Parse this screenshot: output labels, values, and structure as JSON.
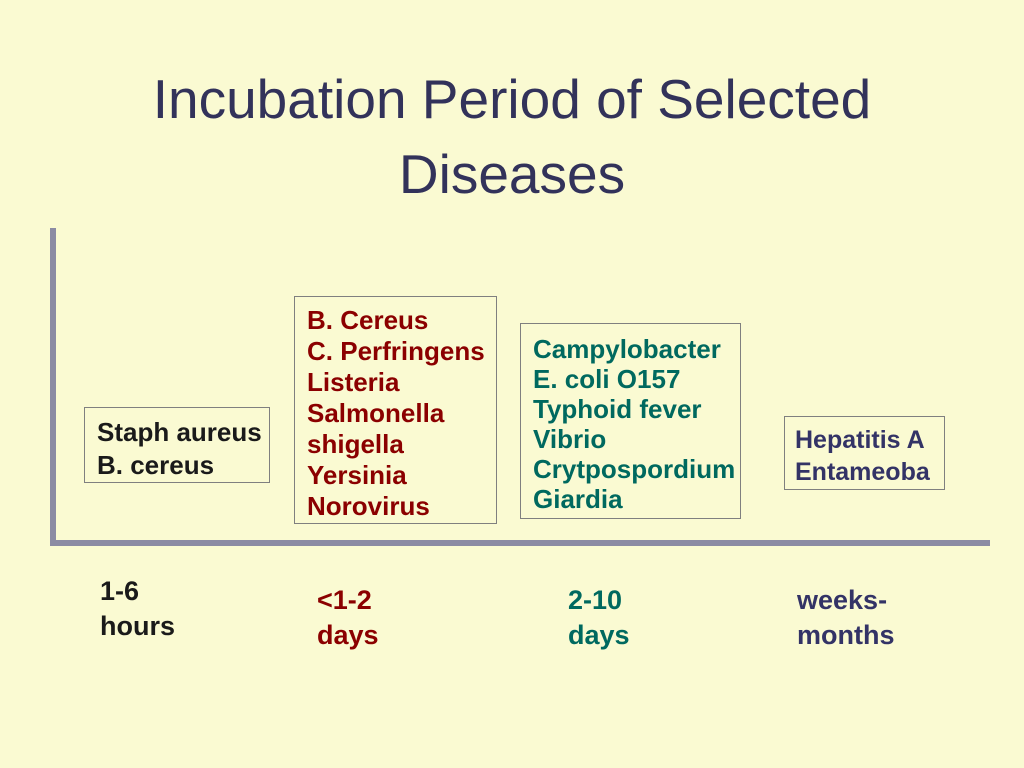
{
  "title": {
    "line1": "Incubation Period of Selected",
    "line2": "Diseases"
  },
  "colors": {
    "background": "#fafad2",
    "title_text": "#32325a",
    "axis_line": "#8b8ba3",
    "box_border": "#7f7f7f",
    "group_hours": "#1a1a1a",
    "group_days_short": "#8b0000",
    "group_days_long": "#00695f",
    "group_weeks_months": "#333366"
  },
  "groups": [
    {
      "id": "hours",
      "diseases": [
        "Staph aureus",
        "B. cereus"
      ],
      "period": [
        "1-6",
        "hours"
      ],
      "color": "#1a1a1a"
    },
    {
      "id": "days-short",
      "diseases": [
        "B. Cereus",
        "C. Perfringens",
        "Listeria",
        "Salmonella",
        "shigella",
        "Yersinia",
        "Norovirus"
      ],
      "period": [
        "<1-2",
        "days"
      ],
      "color": "#8b0000"
    },
    {
      "id": "days-long",
      "diseases": [
        "Campylobacter",
        "E. coli O157",
        "Typhoid fever",
        "Vibrio",
        "Crytpospordium",
        "Giardia"
      ],
      "period": [
        "2-10",
        "days"
      ],
      "color": "#00695f"
    },
    {
      "id": "weeks-months",
      "diseases": [
        "Hepatitis A",
        "Entameoba"
      ],
      "period": [
        "weeks-",
        "months"
      ],
      "color": "#333366"
    }
  ]
}
